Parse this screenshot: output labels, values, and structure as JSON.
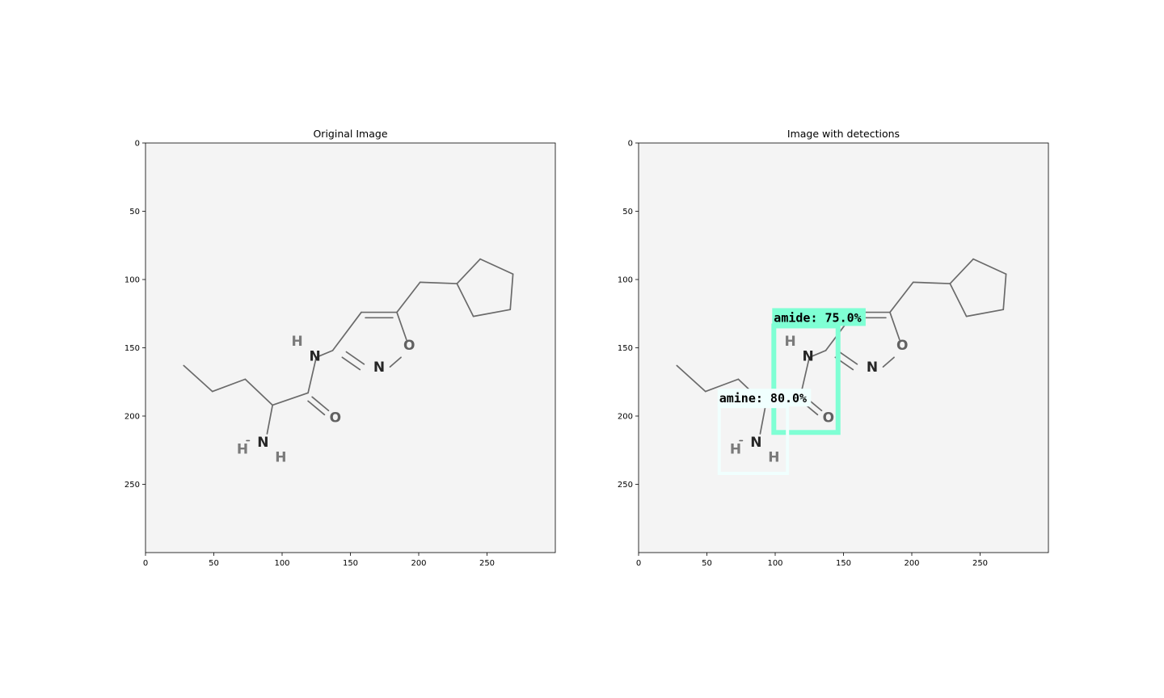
{
  "panels": [
    {
      "id": "left",
      "title": "Original Image",
      "detections": []
    },
    {
      "id": "right",
      "title": "Image with detections",
      "detections": [
        {
          "label": "amide: 75.0%",
          "color": "#7fffd4"
        },
        {
          "label": "amine: 80.0%",
          "color": "#f0fffe"
        }
      ]
    }
  ],
  "axes": {
    "xticks": [
      "0",
      "50",
      "100",
      "150",
      "200",
      "250"
    ],
    "yticks": [
      "0",
      "50",
      "100",
      "150",
      "200",
      "250"
    ]
  },
  "atoms": {
    "H": "H",
    "N": "N",
    "O": "O"
  }
}
